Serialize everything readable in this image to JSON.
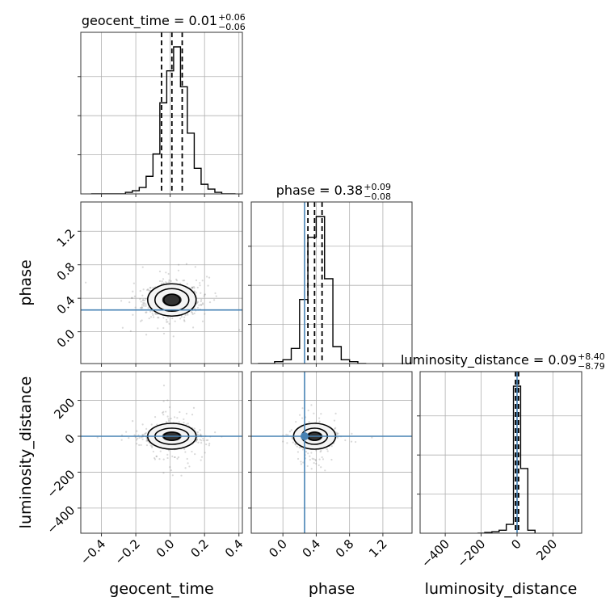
{
  "chart_data": {
    "type": "corner",
    "parameters": [
      {
        "name": "geocent_time",
        "axis_label": "geocent_time",
        "title": {
          "label": "geocent_time = ",
          "median": "0.01",
          "upper": "+0.06",
          "lower": "−0.06"
        },
        "median": 0.01,
        "lower_err": 0.06,
        "upper_err": 0.06,
        "range": [
          -0.52,
          0.42
        ],
        "ticks": [
          -0.4,
          -0.2,
          0.0,
          0.2,
          0.4
        ],
        "tick_labels": [
          "−0.4",
          "−0.2",
          "0.0",
          "0.2",
          "0.4"
        ],
        "truth": null,
        "hist": {
          "edges": [
            -0.46,
            -0.42,
            -0.38,
            -0.34,
            -0.3,
            -0.26,
            -0.22,
            -0.18,
            -0.14,
            -0.1,
            -0.06,
            -0.02,
            0.02,
            0.06,
            0.1,
            0.14,
            0.18,
            0.22,
            0.26,
            0.3,
            0.34,
            0.38
          ],
          "counts": [
            0,
            0,
            0,
            0,
            0,
            0.01,
            0.02,
            0.04,
            0.11,
            0.25,
            0.57,
            0.77,
            0.92,
            0.67,
            0.38,
            0.16,
            0.06,
            0.03,
            0.01,
            0,
            0
          ]
        }
      },
      {
        "name": "phase",
        "axis_label": "phase",
        "title": {
          "label": "phase = ",
          "median": "0.38",
          "upper": "+0.09",
          "lower": "−0.08"
        },
        "median": 0.38,
        "lower_err": 0.08,
        "upper_err": 0.09,
        "range": [
          -0.38,
          1.55
        ],
        "ticks": [
          0.0,
          0.4,
          0.8,
          1.2
        ],
        "tick_labels": [
          "0.0",
          "0.4",
          "0.8",
          "1.2"
        ],
        "truth": 0.26,
        "hist": {
          "edges": [
            -0.3,
            -0.2,
            -0.1,
            0.0,
            0.1,
            0.2,
            0.3,
            0.4,
            0.5,
            0.6,
            0.7,
            0.8,
            0.9,
            1.0
          ],
          "counts": [
            0,
            0,
            0.01,
            0.02,
            0.08,
            0.34,
            0.67,
            0.78,
            0.45,
            0.09,
            0.02,
            0.01,
            0
          ]
        }
      },
      {
        "name": "luminosity_distance",
        "axis_label": "luminosity_distance",
        "title": {
          "label": "luminosity_distance = ",
          "median": "0.09",
          "upper": "+8.40",
          "lower": "−8.79"
        },
        "median": 0.09,
        "lower_err": 8.79,
        "upper_err": 8.4,
        "range": [
          -540,
          360
        ],
        "ticks": [
          -400,
          -200,
          0,
          200
        ],
        "tick_labels": [
          "−400",
          "−200",
          "0",
          "200"
        ],
        "y_ticks": [
          -400,
          -200,
          0,
          200
        ],
        "y_tick_labels": [
          "−400",
          "−200",
          "0",
          "200"
        ],
        "truth": 0,
        "hist": {
          "edges": [
            -220,
            -180,
            -140,
            -100,
            -60,
            -20,
            20,
            60,
            100
          ],
          "counts": [
            0,
            0.005,
            0.01,
            0.02,
            0.06,
            1.0,
            0.44,
            0.02,
            0
          ]
        }
      }
    ]
  }
}
